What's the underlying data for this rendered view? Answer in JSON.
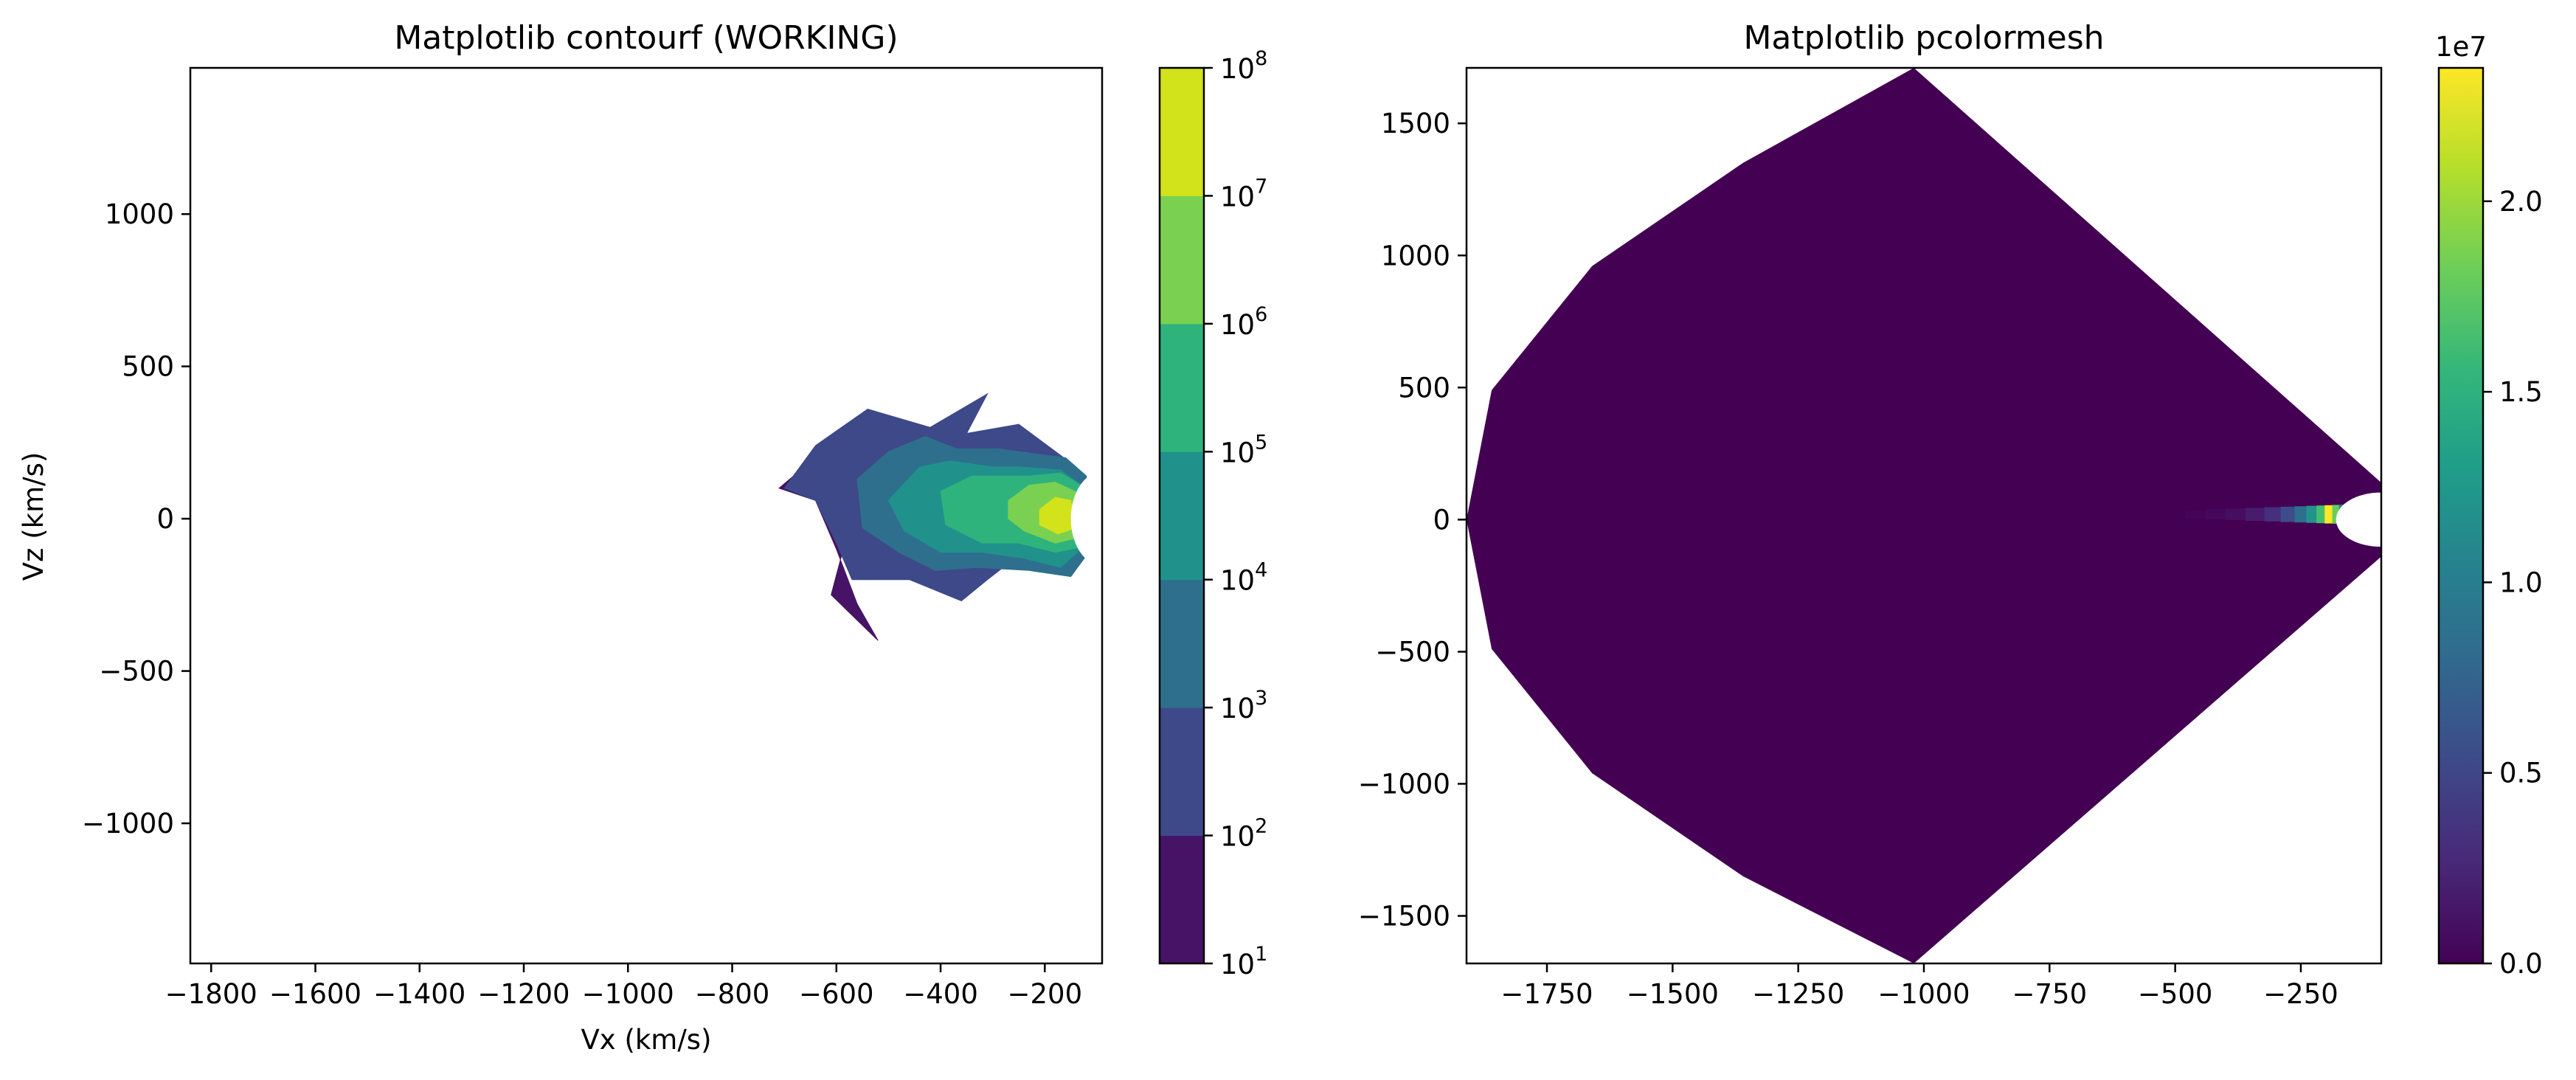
{
  "colors": {
    "viridis": [
      "#440154",
      "#482878",
      "#3e4989",
      "#31688e",
      "#26828e",
      "#1f9e89",
      "#35b779",
      "#6ece58",
      "#b5de2b",
      "#fde725"
    ],
    "background": "#ffffff",
    "axis": "#000000"
  },
  "chart_data": [
    {
      "type": "contourf",
      "title": "Matplotlib contourf (WORKING)",
      "xlabel": "Vx (km/s)",
      "ylabel": "Vz (km/s)",
      "xlim": [
        -1840,
        -90
      ],
      "ylim": [
        -1460,
        1480
      ],
      "xticks": [
        -1800,
        -1600,
        -1400,
        -1200,
        -1000,
        -800,
        -600,
        -400,
        -200
      ],
      "xtick_labels": [
        "−1800",
        "−1600",
        "−1400",
        "−1200",
        "−1000",
        "−800",
        "−600",
        "−400",
        "−200"
      ],
      "yticks": [
        -1000,
        -500,
        0,
        500,
        1000
      ],
      "ytick_labels": [
        "−1000",
        "−500",
        "0",
        "500",
        "1000"
      ],
      "grid": false,
      "colorbar": {
        "scale": "log",
        "levels": [
          10,
          100,
          1000,
          10000,
          100000,
          1000000,
          10000000,
          100000000
        ],
        "label_base": [
          "10",
          "10",
          "10",
          "10",
          "10",
          "10",
          "10",
          "10"
        ],
        "label_exp": [
          "1",
          "2",
          "3",
          "4",
          "5",
          "6",
          "7",
          "8"
        ],
        "colors": [
          "#471366",
          "#3e4989",
          "#2e6f8e",
          "#21918c",
          "#2eb37c",
          "#7ad151",
          "#d2e21b"
        ]
      },
      "regions": [
        {
          "level": 1,
          "color": "#471366",
          "points": [
            [
              -710,
              100
            ],
            [
              -600,
              260
            ],
            [
              -550,
              210
            ],
            [
              -560,
              60
            ],
            [
              -500,
              -150
            ],
            [
              -590,
              -120
            ],
            [
              -610,
              -250
            ],
            [
              -520,
              -400
            ],
            [
              -560,
              -280
            ],
            [
              -600,
              -100
            ],
            [
              -640,
              60
            ]
          ]
        },
        {
          "level": 2,
          "color": "#3e4989",
          "points": [
            [
              -700,
              100
            ],
            [
              -640,
              240
            ],
            [
              -540,
              360
            ],
            [
              -420,
              300
            ],
            [
              -310,
              410
            ],
            [
              -350,
              280
            ],
            [
              -250,
              310
            ],
            [
              -140,
              170
            ],
            [
              -150,
              -170
            ],
            [
              -250,
              -120
            ],
            [
              -310,
              -200
            ],
            [
              -360,
              -270
            ],
            [
              -460,
              -200
            ],
            [
              -510,
              -200
            ],
            [
              -570,
              -200
            ],
            [
              -600,
              -80
            ],
            [
              -640,
              60
            ]
          ]
        },
        {
          "level": 3,
          "color": "#2e6f8e",
          "points": [
            [
              -560,
              130
            ],
            [
              -500,
              220
            ],
            [
              -430,
              270
            ],
            [
              -370,
              230
            ],
            [
              -290,
              230
            ],
            [
              -250,
              220
            ],
            [
              -160,
              200
            ],
            [
              -120,
              140
            ],
            [
              -120,
              -120
            ],
            [
              -150,
              -190
            ],
            [
              -230,
              -170
            ],
            [
              -330,
              -160
            ],
            [
              -410,
              -170
            ],
            [
              -480,
              -110
            ],
            [
              -550,
              -30
            ]
          ]
        },
        {
          "level": 4,
          "color": "#21918c",
          "points": [
            [
              -500,
              60
            ],
            [
              -440,
              170
            ],
            [
              -380,
              190
            ],
            [
              -300,
              170
            ],
            [
              -250,
              170
            ],
            [
              -170,
              160
            ],
            [
              -130,
              110
            ],
            [
              -130,
              -100
            ],
            [
              -170,
              -160
            ],
            [
              -240,
              -130
            ],
            [
              -320,
              -110
            ],
            [
              -400,
              -110
            ],
            [
              -470,
              -40
            ]
          ]
        },
        {
          "level": 5,
          "color": "#2eb37c",
          "points": [
            [
              -400,
              90
            ],
            [
              -340,
              140
            ],
            [
              -280,
              140
            ],
            [
              -230,
              140
            ],
            [
              -170,
              150
            ],
            [
              -120,
              100
            ],
            [
              -120,
              -90
            ],
            [
              -180,
              -110
            ],
            [
              -250,
              -80
            ],
            [
              -320,
              -80
            ],
            [
              -390,
              -20
            ]
          ]
        },
        {
          "level": 6,
          "color": "#7ad151",
          "points": [
            [
              -270,
              60
            ],
            [
              -230,
              110
            ],
            [
              -180,
              120
            ],
            [
              -130,
              80
            ],
            [
              -130,
              -60
            ],
            [
              -180,
              -80
            ],
            [
              -240,
              -40
            ],
            [
              -270,
              0
            ]
          ]
        },
        {
          "level": 7,
          "color": "#d2e21b",
          "points": [
            [
              -210,
              30
            ],
            [
              -180,
              70
            ],
            [
              -150,
              60
            ],
            [
              -140,
              -30
            ],
            [
              -175,
              -50
            ],
            [
              -210,
              -20
            ]
          ]
        }
      ],
      "inner_cutout": {
        "center_x": -90,
        "radius": 60
      }
    },
    {
      "type": "pcolormesh",
      "title": "Matplotlib pcolormesh",
      "xlabel": "",
      "ylabel": "",
      "xlim": [
        -1910,
        -90
      ],
      "ylim": [
        -1680,
        1710
      ],
      "xticks": [
        -1750,
        -1500,
        -1250,
        -1000,
        -750,
        -500,
        -250
      ],
      "xtick_labels": [
        "−1750",
        "−1500",
        "−1250",
        "−1000",
        "−750",
        "−500",
        "−250"
      ],
      "yticks": [
        -1500,
        -1000,
        -500,
        0,
        500,
        1000,
        1500
      ],
      "ytick_labels": [
        "−1500",
        "−1000",
        "−500",
        "0",
        "500",
        "1000",
        "1500"
      ],
      "grid": false,
      "colorbar": {
        "scale": "linear",
        "range": [
          0,
          23500000
        ],
        "ticks": [
          0,
          5000000,
          10000000,
          15000000,
          20000000
        ],
        "tick_labels": [
          "0.0",
          "0.5",
          "1.0",
          "1.5",
          "2.0"
        ],
        "offset_text": "1e7"
      },
      "outer_boundary": [
        [
          -1910,
          0
        ],
        [
          -1860,
          490
        ],
        [
          -1660,
          960
        ],
        [
          -1360,
          1350
        ],
        [
          -1020,
          1710
        ],
        [
          -90,
          140
        ],
        [
          -90,
          -140
        ],
        [
          -1020,
          -1680
        ],
        [
          -1360,
          -1350
        ],
        [
          -1660,
          -960
        ],
        [
          -1860,
          -490
        ]
      ],
      "hotspot": {
        "center": [
          -195,
          20
        ],
        "peak_value": 23500000,
        "cells": [
          {
            "x": -460,
            "value": 200000
          },
          {
            "x": -420,
            "value": 500000
          },
          {
            "x": -380,
            "value": 900000
          },
          {
            "x": -340,
            "value": 1800000
          },
          {
            "x": -305,
            "value": 3200000
          },
          {
            "x": -275,
            "value": 5500000
          },
          {
            "x": -250,
            "value": 8500000
          },
          {
            "x": -228,
            "value": 12000000
          },
          {
            "x": -210,
            "value": 16500000
          },
          {
            "x": -195,
            "value": 23500000
          },
          {
            "x": -180,
            "value": 18000000
          },
          {
            "x": -168,
            "value": 11000000
          },
          {
            "x": -157,
            "value": 5500000
          }
        ]
      },
      "inner_cutout": {
        "center_x": -90,
        "radius": 90
      }
    }
  ]
}
